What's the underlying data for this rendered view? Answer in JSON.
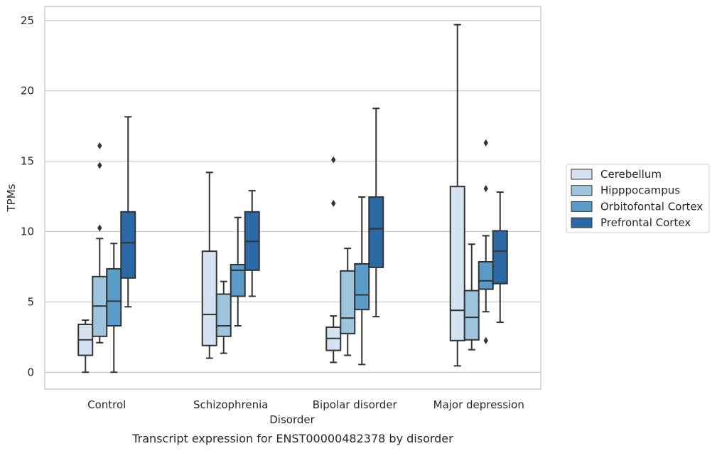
{
  "chart_data": {
    "type": "boxplot",
    "xlabel": "Disorder",
    "ylabel": "TPMs",
    "caption": "Transcript expression for ENST00000482378 by disorder",
    "ylim": [
      -1.2,
      26
    ],
    "yticks": [
      0,
      5,
      10,
      15,
      20,
      25
    ],
    "grid": "horizontal",
    "legend_position": "right",
    "categories": [
      "Control",
      "Schizophrenia",
      "Bipolar disorder",
      "Major depression"
    ],
    "series": [
      {
        "name": "Cerebellum",
        "color": "#d4e2f1",
        "boxes": [
          {
            "whislo": 0.0,
            "q1": 1.2,
            "med": 2.3,
            "q3": 3.4,
            "whishi": 3.7,
            "fliers": []
          },
          {
            "whislo": 1.0,
            "q1": 1.9,
            "med": 4.1,
            "q3": 8.6,
            "whishi": 14.2,
            "fliers": []
          },
          {
            "whislo": 0.7,
            "q1": 1.55,
            "med": 2.4,
            "q3": 3.2,
            "whishi": 4.0,
            "fliers": [
              12.0,
              15.1
            ]
          },
          {
            "whislo": 0.45,
            "q1": 2.25,
            "med": 4.4,
            "q3": 13.2,
            "whishi": 24.7,
            "fliers": []
          }
        ]
      },
      {
        "name": "Hipppocampus",
        "color": "#9dc3dd",
        "boxes": [
          {
            "whislo": 2.1,
            "q1": 2.55,
            "med": 4.7,
            "q3": 6.8,
            "whishi": 9.5,
            "fliers": [
              10.25,
              14.7,
              16.1
            ]
          },
          {
            "whislo": 1.35,
            "q1": 2.55,
            "med": 3.3,
            "q3": 5.55,
            "whishi": 6.45,
            "fliers": []
          },
          {
            "whislo": 1.2,
            "q1": 2.75,
            "med": 3.85,
            "q3": 7.2,
            "whishi": 8.8,
            "fliers": []
          },
          {
            "whislo": 1.6,
            "q1": 2.3,
            "med": 3.9,
            "q3": 5.8,
            "whishi": 9.1,
            "fliers": []
          }
        ]
      },
      {
        "name": "Orbitofontal Cortex",
        "color": "#5a9bc8",
        "boxes": [
          {
            "whislo": 0.0,
            "q1": 3.3,
            "med": 5.05,
            "q3": 7.35,
            "whishi": 9.15,
            "fliers": []
          },
          {
            "whislo": 3.3,
            "q1": 5.4,
            "med": 7.25,
            "q3": 7.65,
            "whishi": 11.0,
            "fliers": []
          },
          {
            "whislo": 0.55,
            "q1": 4.45,
            "med": 5.5,
            "q3": 7.7,
            "whishi": 12.45,
            "fliers": []
          },
          {
            "whislo": 4.3,
            "q1": 5.9,
            "med": 6.5,
            "q3": 7.85,
            "whishi": 9.7,
            "fliers": [
              2.25,
              13.05,
              16.3
            ]
          }
        ]
      },
      {
        "name": "Prefrontal Cortex",
        "color": "#2b6aa6",
        "boxes": [
          {
            "whislo": 4.65,
            "q1": 6.7,
            "med": 9.2,
            "q3": 11.4,
            "whishi": 18.15,
            "fliers": []
          },
          {
            "whislo": 5.4,
            "q1": 7.25,
            "med": 9.3,
            "q3": 11.4,
            "whishi": 12.9,
            "fliers": []
          },
          {
            "whislo": 3.95,
            "q1": 7.45,
            "med": 10.2,
            "q3": 12.45,
            "whishi": 18.75,
            "fliers": []
          },
          {
            "whislo": 3.55,
            "q1": 6.3,
            "med": 8.6,
            "q3": 10.05,
            "whishi": 12.8,
            "fliers": []
          }
        ]
      }
    ]
  }
}
